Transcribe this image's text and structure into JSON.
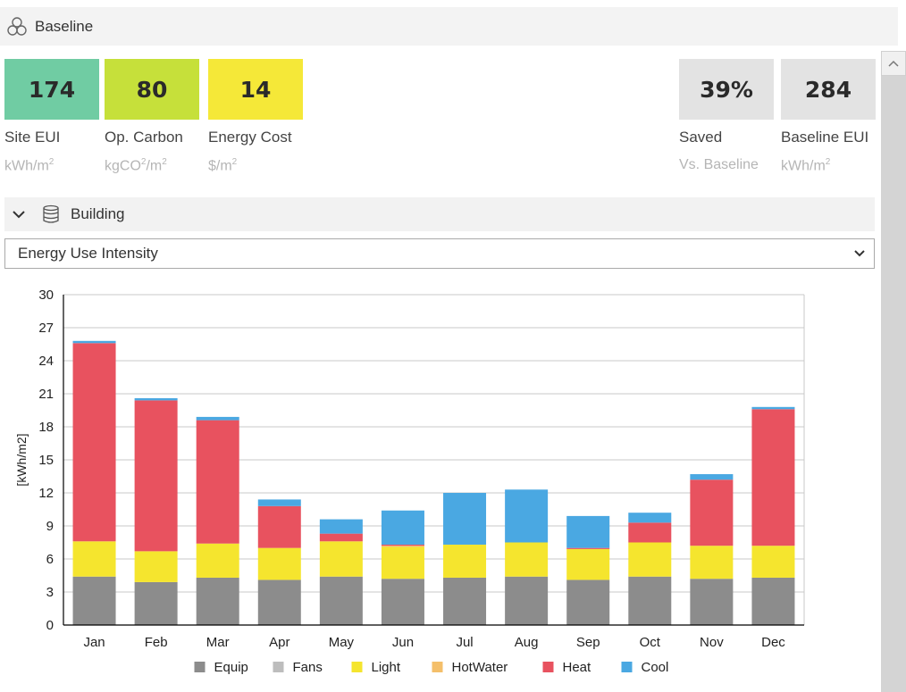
{
  "header": {
    "title": "Baseline"
  },
  "metrics": [
    {
      "value": "174",
      "label": "Site EUI",
      "unit": "kWh/m",
      "sup": "2",
      "color": "#70cca3"
    },
    {
      "value": "80",
      "label": "Op. Carbon",
      "unit": "kgCO",
      "sup": "2",
      "unit_tail": "/m",
      "sup2": "2",
      "color": "#c6e03a"
    },
    {
      "value": "14",
      "label": "Energy Cost",
      "unit": "$/m",
      "sup": "2",
      "color": "#f5e838"
    },
    {
      "value": "39%",
      "label": "Saved",
      "unit": "Vs. Baseline",
      "color": "#e3e3e3"
    },
    {
      "value": "284",
      "label": "Baseline EUI",
      "unit": "kWh/m",
      "sup": "2",
      "color": "#e3e3e3"
    }
  ],
  "section": {
    "title": "Building"
  },
  "dropdown": {
    "selected": "Energy Use Intensity"
  },
  "chart_data": {
    "type": "bar",
    "stacked": true,
    "categories": [
      "Jan",
      "Feb",
      "Mar",
      "Apr",
      "May",
      "Jun",
      "Jul",
      "Aug",
      "Sep",
      "Oct",
      "Nov",
      "Dec"
    ],
    "series": [
      {
        "name": "Equip",
        "color": "#8c8c8c",
        "values": [
          4.4,
          3.9,
          4.3,
          4.1,
          4.4,
          4.2,
          4.3,
          4.4,
          4.1,
          4.4,
          4.2,
          4.3
        ]
      },
      {
        "name": "Fans",
        "color": "#bdbdbd",
        "values": [
          0,
          0,
          0,
          0,
          0,
          0,
          0,
          0,
          0,
          0,
          0,
          0
        ]
      },
      {
        "name": "Light",
        "color": "#f5e52e",
        "values": [
          3.2,
          2.8,
          3.1,
          2.9,
          3.2,
          2.9,
          3.0,
          3.1,
          2.8,
          3.1,
          3.0,
          2.9
        ]
      },
      {
        "name": "HotWater",
        "color": "#f4bf6a",
        "values": [
          0,
          0,
          0,
          0,
          0,
          0.1,
          0,
          0,
          0,
          0,
          0,
          0
        ]
      },
      {
        "name": "Heat",
        "color": "#e8525f",
        "values": [
          18.0,
          13.7,
          11.2,
          3.8,
          0.7,
          0.1,
          0,
          0,
          0.1,
          1.8,
          6.0,
          12.4
        ]
      },
      {
        "name": "Cool",
        "color": "#4aa8e2",
        "values": [
          0.2,
          0.2,
          0.3,
          0.6,
          1.3,
          3.1,
          4.7,
          4.8,
          2.9,
          0.9,
          0.5,
          0.2
        ]
      }
    ],
    "ylabel": "[kWh/m2]",
    "ylim": [
      0,
      30
    ],
    "yticks": [
      "0",
      "3",
      "6",
      "9",
      "12",
      "15",
      "18",
      "21",
      "24",
      "27",
      "30"
    ],
    "legend": "bottom-center"
  }
}
